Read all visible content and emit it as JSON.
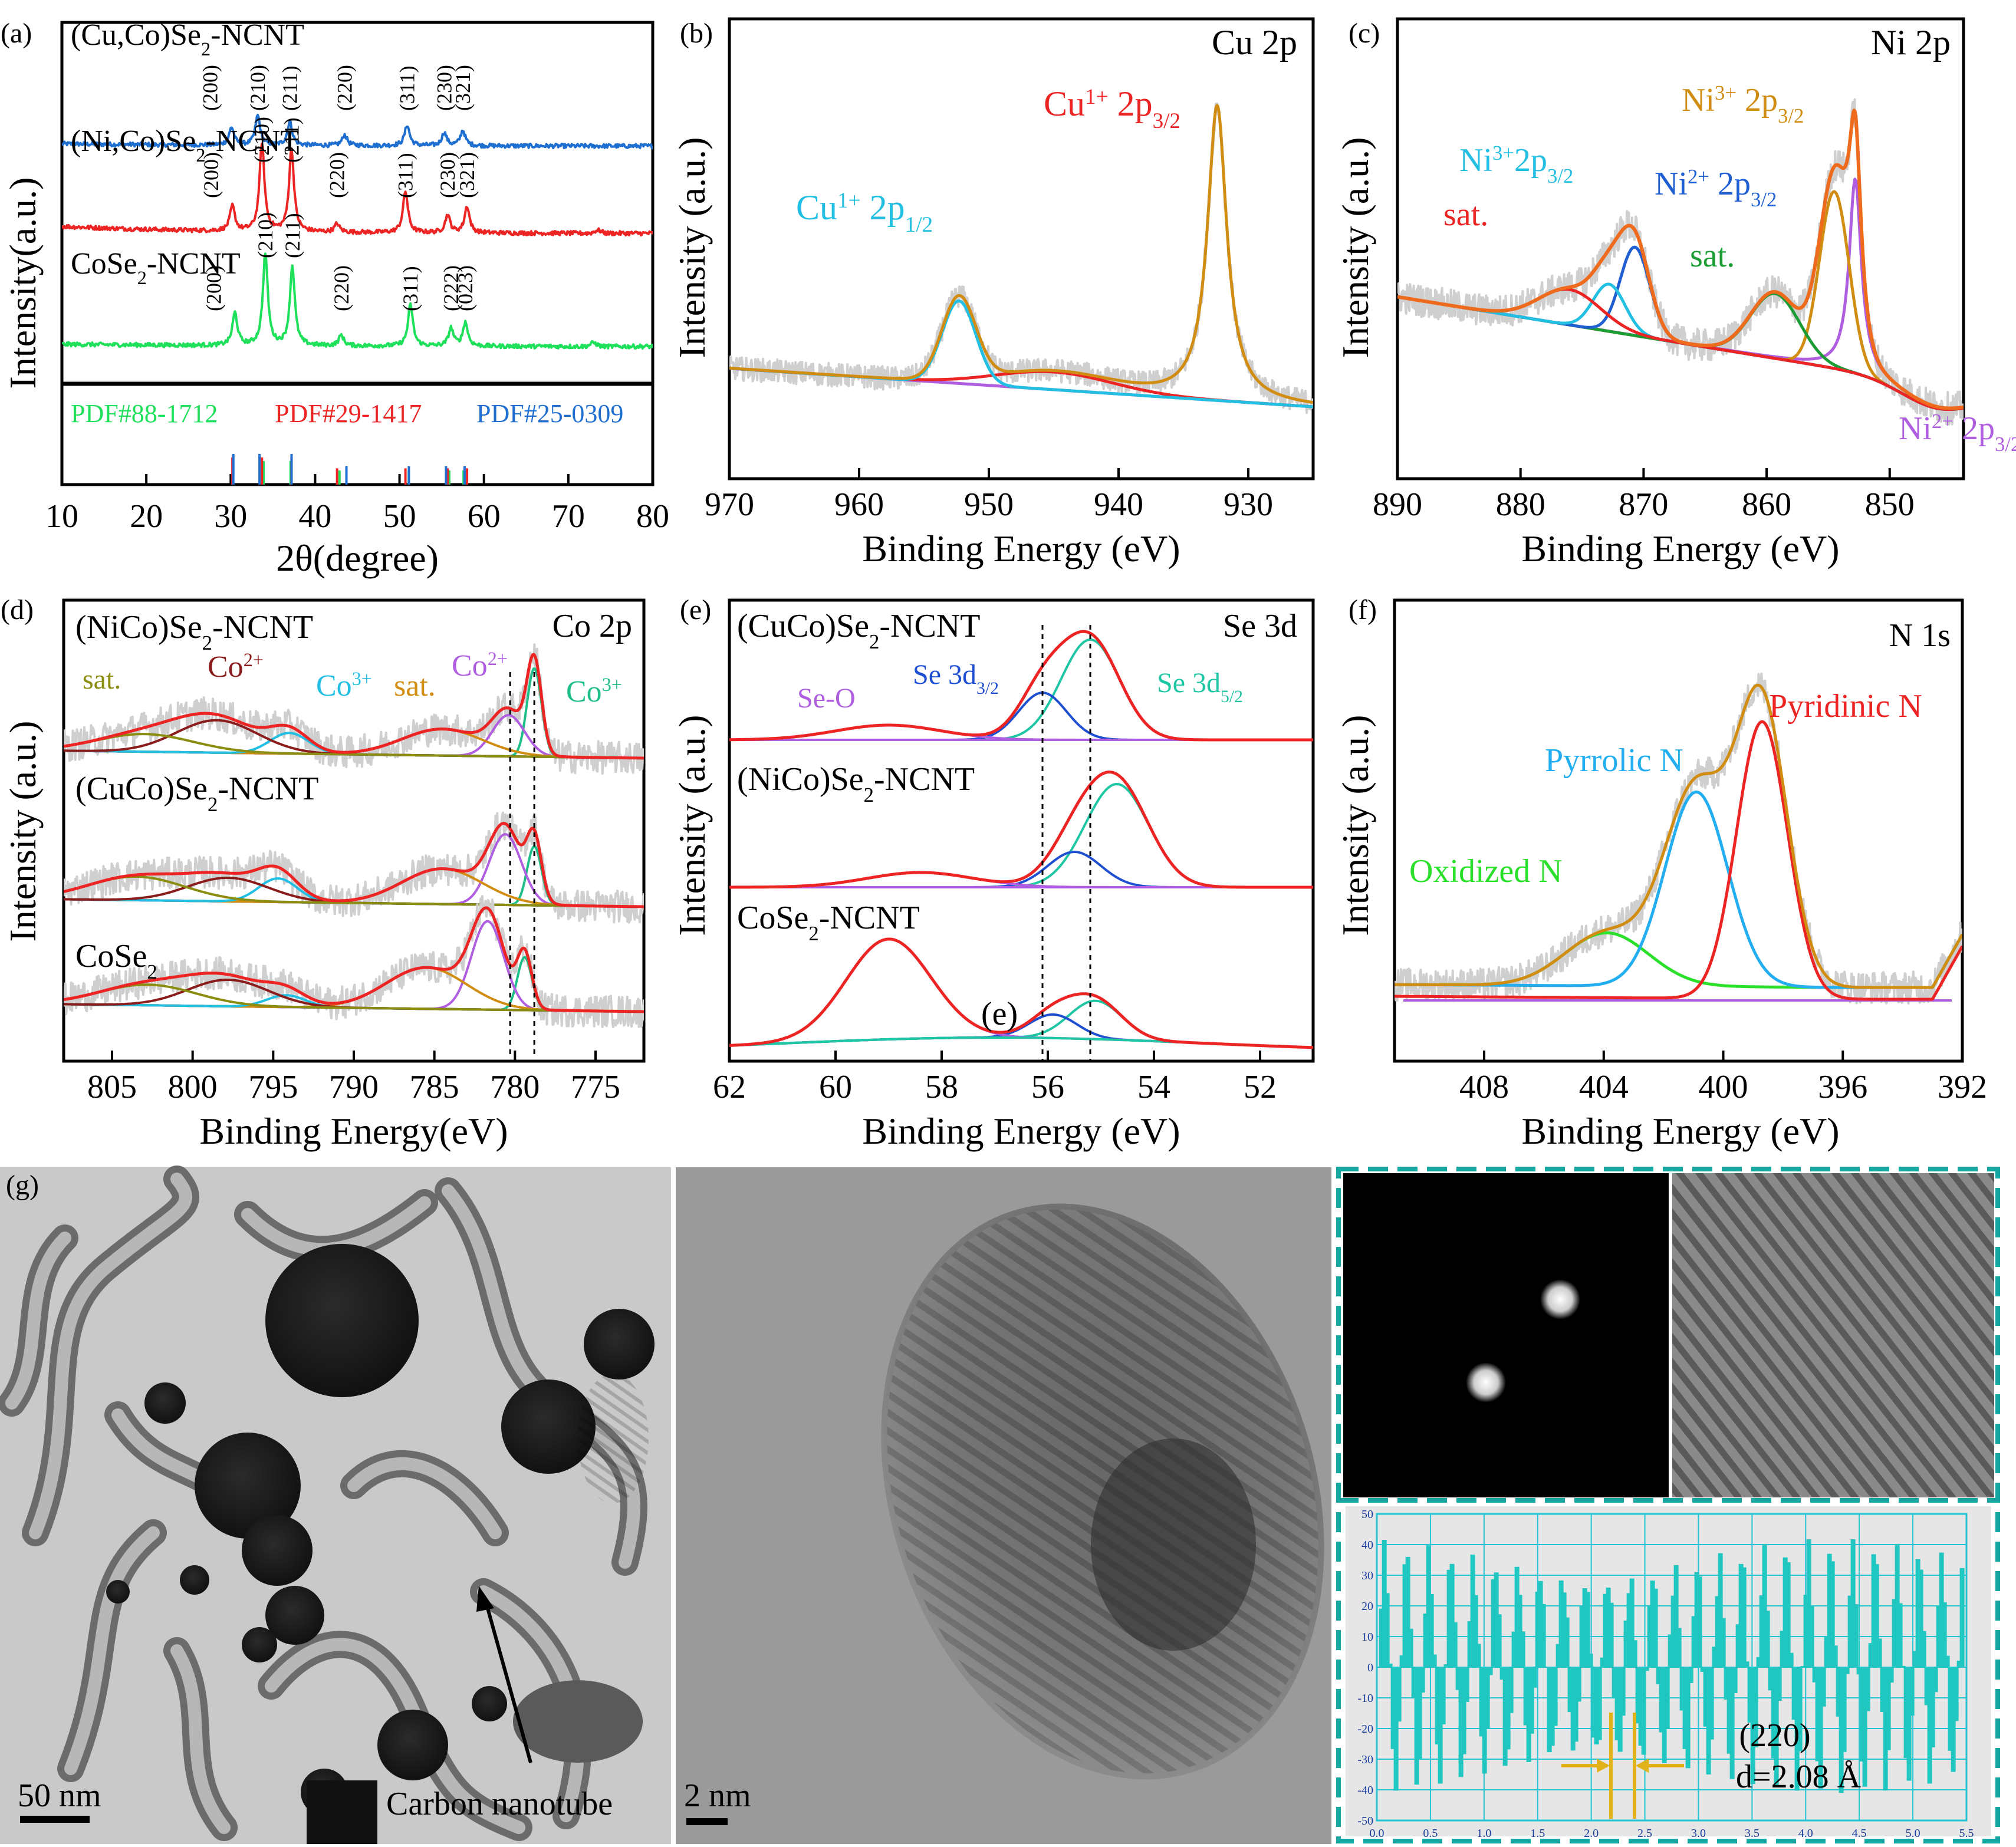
{
  "colors": {
    "blue": "#1f6fd1",
    "red": "#ec2424",
    "green": "#1fe05a",
    "orange": "#d18c12",
    "purple": "#b05ee0",
    "cyan": "#22bfe3",
    "teal": "#1fc6a4",
    "olive": "#8b8d10",
    "maroon": "#8a1c1c",
    "gray": "#cfcfcf",
    "panelTeal": "#17a7a2"
  },
  "chart_data": [
    {
      "id": "a",
      "type": "line",
      "panel_label": "(a)",
      "xlabel": "2θ(degree)",
      "ylabel": "Intensity(a.u.)",
      "xlim": [
        10,
        80
      ],
      "xticks": [
        10,
        20,
        30,
        40,
        50,
        60,
        70,
        80
      ],
      "series": [
        {
          "name": "(Cu,Co)Se₂-NCNT",
          "peaks": [
            30.1,
            33.2,
            37.0,
            43.5,
            50.9,
            55.3,
            57.5
          ],
          "offset": 2,
          "miller": [
            "(200)",
            "(210)",
            "(211)",
            "(220)",
            "(311)",
            "(230)",
            "(321)"
          ]
        },
        {
          "name": "(Ni,Co)Se₂-NCNT",
          "peaks": [
            30.2,
            33.7,
            37.2,
            42.6,
            50.7,
            55.7,
            58.0
          ],
          "offset": 1,
          "miller": [
            "(200)",
            "(210)",
            "(211)",
            "(220)",
            "(311)",
            "(230)",
            "(321)"
          ]
        },
        {
          "name": "CoSe₂-NCNT",
          "peaks": [
            30.5,
            34.1,
            37.3,
            43.1,
            51.3,
            56.1,
            57.8
          ],
          "offset": 0,
          "miller": [
            "(200)",
            "(210)",
            "(211)",
            "(220)",
            "(311)",
            "(222)",
            "(023)"
          ]
        }
      ],
      "reference_labels": [
        "PDF#88-1712",
        "PDF#29-1417",
        "PDF#25-0309"
      ],
      "reference_lines": {
        "PDF#88-1712": [
          30.5,
          34.1,
          37.3,
          43.1,
          51.3,
          56.1,
          57.8
        ],
        "PDF#29-1417": [
          30.2,
          33.7,
          37.2,
          42.6,
          50.7,
          55.7,
          58.0
        ],
        "PDF#25-0309": [
          30.1,
          33.2,
          37.0,
          43.5,
          50.9,
          55.3,
          57.5
        ]
      }
    },
    {
      "id": "b",
      "type": "line",
      "panel_label": "(b)",
      "title": "Cu 2p",
      "xlabel": "Binding Energy (eV)",
      "ylabel": "Intensity (a.u.)",
      "xlim": [
        970,
        925
      ],
      "xticks": [
        970,
        960,
        950,
        940,
        930
      ],
      "peaks": [
        {
          "label": "Cu¹⁺ 2p₃/₂",
          "center": 932.4
        },
        {
          "label": "Cu¹⁺ 2p₁/₂",
          "center": 952.3
        }
      ]
    },
    {
      "id": "c",
      "type": "line",
      "panel_label": "(c)",
      "title": "Ni 2p",
      "xlabel": "Binding Energy (eV)",
      "ylabel": "Intensity (a.u.)",
      "xlim": [
        890,
        844
      ],
      "xticks": [
        890,
        880,
        870,
        860,
        850
      ],
      "peaks": [
        {
          "label": "Ni²⁺ 2p₃/₂",
          "center": 852.8
        },
        {
          "label": "Ni³⁺ 2p₃/₂",
          "center": 854.4
        },
        {
          "label": "sat.",
          "center": 859.2
        },
        {
          "label": "Ni²⁺ 2p₃/₂",
          "center": 870.6
        },
        {
          "label": "Ni³⁺2p₃/₂",
          "center": 872.7
        },
        {
          "label": "sat.",
          "center": 875.8
        }
      ]
    },
    {
      "id": "d",
      "type": "line",
      "panel_label": "(d)",
      "title": "Co 2p",
      "xlabel": "Binding Energy(eV)",
      "ylabel": "Intensity (a.u.)",
      "xlim": [
        808,
        772
      ],
      "xticks": [
        805,
        800,
        795,
        790,
        785,
        780,
        775
      ],
      "reference_lines_at": [
        780.3,
        778.8
      ],
      "series": [
        {
          "name": "(NiCo)Se₂-NCNT",
          "peaks": [
            778.8,
            780.4,
            784.5,
            794.0,
            798.5,
            803.0
          ]
        },
        {
          "name": "(CuCo)Se₂-NCNT",
          "peaks": [
            778.8,
            780.6,
            784.5,
            794.7,
            797.8,
            803.5
          ]
        },
        {
          "name": "CoSe₂",
          "peaks": [
            779.4,
            781.7,
            785.5,
            794.2,
            797.8,
            802.8
          ]
        }
      ],
      "peak_labels": [
        "sat.",
        "Co²⁺",
        "Co³⁺",
        "sat.",
        "Co²⁺",
        "Co³⁺"
      ]
    },
    {
      "id": "e",
      "type": "line",
      "panel_label": "(e)",
      "title": "Se 3d",
      "xlabel": "Binding Energy (eV)",
      "ylabel": "Intensity (a.u.)",
      "xlim": [
        62,
        51
      ],
      "xticks": [
        62,
        60,
        58,
        56,
        54,
        52
      ],
      "reference_lines_at": [
        56.1,
        55.2
      ],
      "series": [
        {
          "name": "(CuCo)Se₂-NCNT",
          "peaks": [
            55.2,
            56.1,
            59.0
          ]
        },
        {
          "name": "(NiCo)Se₂-NCNT",
          "peaks": [
            54.7,
            55.5,
            58.4
          ]
        },
        {
          "name": "CoSe₂-NCNT",
          "peaks": [
            55.1,
            55.9,
            59.0
          ]
        }
      ],
      "peak_labels": [
        "Se-O",
        "Se 3d₃/₂",
        "Se 3d₅/₂"
      ],
      "annotation": "(e)"
    },
    {
      "id": "f",
      "type": "line",
      "panel_label": "(f)",
      "title": "N 1s",
      "xlabel": "Binding Energy (eV)",
      "ylabel": "Intensity (a.u.)",
      "xlim": [
        411,
        392
      ],
      "xticks": [
        408,
        404,
        400,
        396,
        392
      ],
      "peaks": [
        {
          "label": "Pyridinic N",
          "center": 398.7
        },
        {
          "label": "Pyrrolic N",
          "center": 400.9
        },
        {
          "label": "Oxidized N",
          "center": 403.9
        }
      ]
    },
    {
      "id": "g-profile",
      "type": "bar",
      "panel_label": "(g)",
      "xlim": [
        0,
        5.5
      ],
      "ylim": [
        -50,
        50
      ],
      "xticks": [
        0.0,
        0.5,
        1.0,
        1.5,
        2.0,
        2.5,
        3.0,
        3.5,
        4.0,
        4.5,
        5.0,
        5.5
      ],
      "yticks": [
        50,
        40,
        30,
        20,
        10,
        0,
        -10,
        -20,
        -30,
        -40,
        -50
      ],
      "period_nm": 0.208,
      "annotation_plane": "(220)",
      "annotation_d": "d=2.08 Å"
    }
  ],
  "images": {
    "tem_scale": "50 nm",
    "tem_annotation": "Carbon nanotube",
    "hrtem_scale": "2 nm"
  }
}
